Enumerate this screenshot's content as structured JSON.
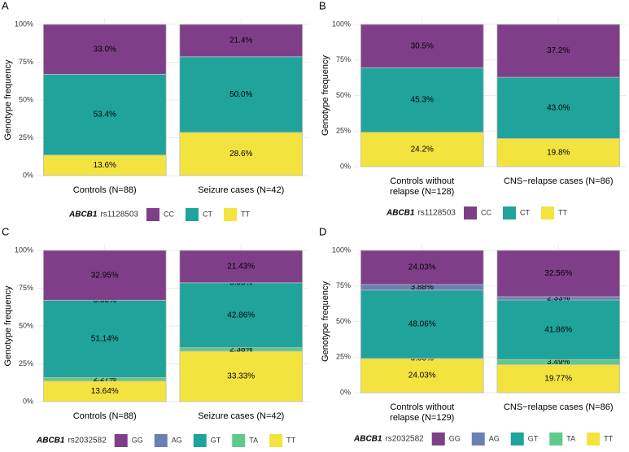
{
  "chart_data": [
    {
      "type": "stacked_bar",
      "panel": "A",
      "ylabel": "Genotype frequency",
      "categories": [
        [
          "Controls (N=88)"
        ],
        [
          "Seizure cases (N=42)"
        ]
      ],
      "ylim": [
        0,
        100
      ],
      "yticks": [
        {
          "value": 0,
          "label": "0%"
        },
        {
          "value": 25,
          "label": "25%"
        },
        {
          "value": 50,
          "label": "50%"
        },
        {
          "value": 75,
          "label": "75%"
        },
        {
          "value": 100,
          "label": "100%"
        }
      ],
      "grid": true,
      "legend_title": {
        "gene": "ABCB1",
        "snp": "rs1128503"
      },
      "series": [
        {
          "name": "CC",
          "color": "#7f3f88",
          "values": [
            33.0,
            21.4
          ],
          "value_labels": [
            "33.0%",
            "21.4%"
          ]
        },
        {
          "name": "CT",
          "color": "#1fa39b",
          "values": [
            53.4,
            50.0
          ],
          "value_labels": [
            "53.4%",
            "50.0%"
          ]
        },
        {
          "name": "TT",
          "color": "#f3e33e",
          "values": [
            13.6,
            28.6
          ],
          "value_labels": [
            "13.6%",
            "28.6%"
          ]
        }
      ]
    },
    {
      "type": "stacked_bar",
      "panel": "B",
      "ylabel": "Genotype frequency",
      "categories": [
        [
          "Controls without",
          "relapse (N=128)"
        ],
        [
          "CNS−relapse cases (N=86)"
        ]
      ],
      "ylim": [
        0,
        100
      ],
      "yticks": [
        {
          "value": 0,
          "label": "0%"
        },
        {
          "value": 25,
          "label": "25%"
        },
        {
          "value": 50,
          "label": "50%"
        },
        {
          "value": 75,
          "label": "75%"
        },
        {
          "value": 100,
          "label": "100%"
        }
      ],
      "grid": true,
      "legend_title": {
        "gene": "ABCB1",
        "snp": "rs1128503"
      },
      "series": [
        {
          "name": "CC",
          "color": "#7f3f88",
          "values": [
            30.5,
            37.2
          ],
          "value_labels": [
            "30.5%",
            "37.2%"
          ]
        },
        {
          "name": "CT",
          "color": "#1fa39b",
          "values": [
            45.3,
            43.0
          ],
          "value_labels": [
            "45.3%",
            "43.0%"
          ]
        },
        {
          "name": "TT",
          "color": "#f3e33e",
          "values": [
            24.2,
            19.8
          ],
          "value_labels": [
            "24.2%",
            "19.8%"
          ]
        }
      ]
    },
    {
      "type": "stacked_bar",
      "panel": "C",
      "ylabel": "Genotype frequency",
      "categories": [
        [
          "Controls (N=88)"
        ],
        [
          "Seizure cases (N=42)"
        ]
      ],
      "ylim": [
        0,
        100
      ],
      "yticks": [
        {
          "value": 0,
          "label": "0%"
        },
        {
          "value": 25,
          "label": "25%"
        },
        {
          "value": 50,
          "label": "50%"
        },
        {
          "value": 75,
          "label": "75%"
        },
        {
          "value": 100,
          "label": "100%"
        }
      ],
      "grid": true,
      "legend_title": {
        "gene": "ABCB1",
        "snp": "rs2032582"
      },
      "series": [
        {
          "name": "GG",
          "color": "#7f3f88",
          "values": [
            32.95,
            21.43
          ],
          "value_labels": [
            "32.95%",
            "21.43%"
          ]
        },
        {
          "name": "AG",
          "color": "#6a7fb4",
          "values": [
            0.0,
            0.0
          ],
          "value_labels": [
            "0.00%",
            "0.00%"
          ]
        },
        {
          "name": "GT",
          "color": "#1fa39b",
          "values": [
            51.14,
            42.86
          ],
          "value_labels": [
            "51.14%",
            "42.86%"
          ]
        },
        {
          "name": "TA",
          "color": "#5fca8c",
          "values": [
            2.27,
            2.38
          ],
          "value_labels": [
            "2.27%",
            "2.38%"
          ]
        },
        {
          "name": "TT",
          "color": "#f3e33e",
          "values": [
            13.64,
            33.33
          ],
          "value_labels": [
            "13.64%",
            "33.33%"
          ]
        }
      ]
    },
    {
      "type": "stacked_bar",
      "panel": "D",
      "ylabel": "Genotype frequency",
      "categories": [
        [
          "Controls without",
          "relapse (N=129)"
        ],
        [
          "CNS−relapse cases (N=86)"
        ]
      ],
      "ylim": [
        0,
        100
      ],
      "yticks": [
        {
          "value": 0,
          "label": "0%"
        },
        {
          "value": 25,
          "label": "25%"
        },
        {
          "value": 50,
          "label": "50%"
        },
        {
          "value": 75,
          "label": "75%"
        },
        {
          "value": 100,
          "label": "100%"
        }
      ],
      "grid": true,
      "legend_title": {
        "gene": "ABCB1",
        "snp": "rs2032582"
      },
      "series": [
        {
          "name": "GG",
          "color": "#7f3f88",
          "values": [
            24.03,
            32.56
          ],
          "value_labels": [
            "24.03%",
            "32.56%"
          ]
        },
        {
          "name": "AG",
          "color": "#6a7fb4",
          "values": [
            3.88,
            2.33
          ],
          "value_labels": [
            "3.88%",
            "2.33%"
          ]
        },
        {
          "name": "GT",
          "color": "#1fa39b",
          "values": [
            48.06,
            41.86
          ],
          "value_labels": [
            "48.06%",
            "41.86%"
          ]
        },
        {
          "name": "TA",
          "color": "#5fca8c",
          "values": [
            0.0,
            3.49
          ],
          "value_labels": [
            "0.00%",
            "3.49%"
          ]
        },
        {
          "name": "TT",
          "color": "#f3e33e",
          "values": [
            24.03,
            19.77
          ],
          "value_labels": [
            "24.03%",
            "19.77%"
          ]
        }
      ]
    }
  ]
}
